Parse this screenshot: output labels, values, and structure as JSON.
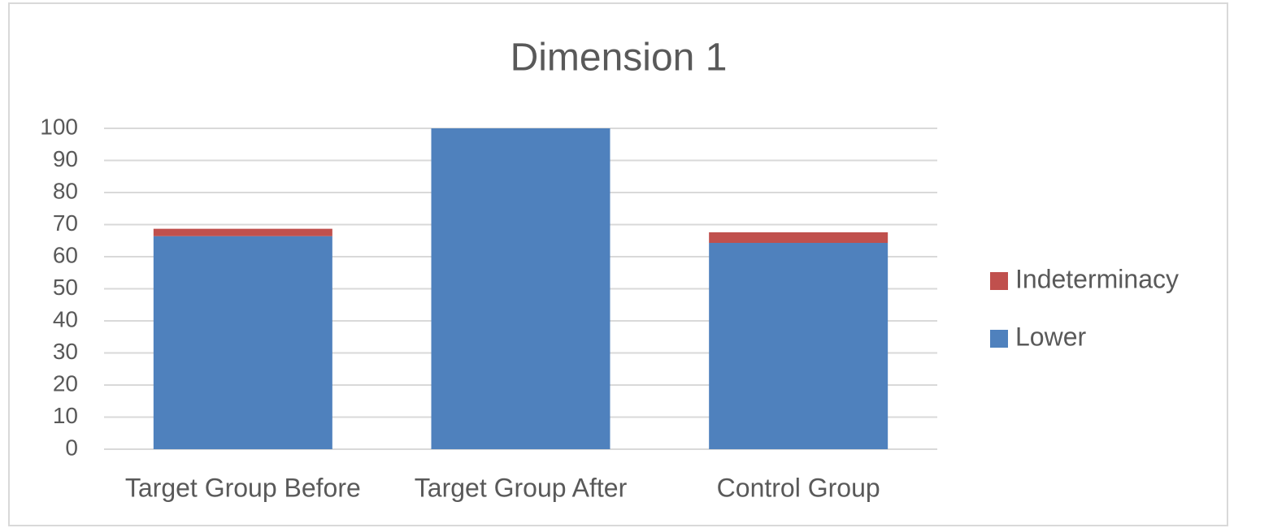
{
  "chart_data": {
    "type": "stacked_bar",
    "title": "Dimension 1",
    "categories": [
      "Target Group Before",
      "Target Group After",
      "Control Group"
    ],
    "series": [
      {
        "name": "Lower",
        "color": "#4f81bd",
        "values": [
          66.4,
          100,
          64.3
        ]
      },
      {
        "name": "Indeterminacy",
        "color": "#c0504d",
        "values": [
          2.3,
          0,
          3.3
        ]
      }
    ],
    "ylim": [
      0,
      100
    ],
    "yticks": [
      0,
      10,
      20,
      30,
      40,
      50,
      60,
      70,
      80,
      90,
      100
    ],
    "grid": true,
    "legend": "right"
  }
}
